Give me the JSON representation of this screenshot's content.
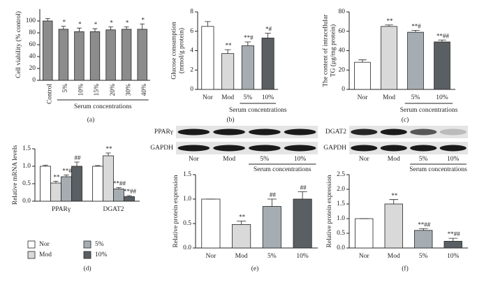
{
  "chart_data": [
    {
      "type": "bar",
      "panel_label": "(a)",
      "ylabel": "Cell viability (% control)",
      "categories": [
        "Control",
        "5%",
        "10%",
        "15%",
        "20%",
        "30%",
        "40%"
      ],
      "values": [
        100,
        86,
        82,
        82,
        85,
        86,
        86
      ],
      "errors": [
        4,
        5,
        6,
        5,
        5,
        4,
        9
      ],
      "annotations": [
        null,
        "*",
        "*",
        "*",
        "*",
        "*",
        "*"
      ],
      "colors": [
        "#8c8c8c",
        "#8c8c8c",
        "#8c8c8c",
        "#8c8c8c",
        "#8c8c8c",
        "#8c8c8c",
        "#8c8c8c"
      ],
      "ylim": [
        0,
        120
      ],
      "yticks": [
        0,
        20,
        40,
        60,
        80,
        100
      ],
      "group_label": "Serum concentrations"
    },
    {
      "type": "bar",
      "panel_label": "(b)",
      "ylabel": "Glucose consumption\n(mmol/g protein)",
      "categories": [
        "Nor",
        "Mod",
        "5%",
        "10%"
      ],
      "values": [
        6.5,
        3.7,
        4.5,
        5.3
      ],
      "errors": [
        0.5,
        0.4,
        0.4,
        0.5
      ],
      "annotations": [
        null,
        "**",
        "**#",
        "*#"
      ],
      "colors": [
        "#ffffff",
        "#d9d9d9",
        "#a6adb2",
        "#5a5f63"
      ],
      "ylim": [
        0,
        8
      ],
      "yticks": [
        0,
        2,
        4,
        6,
        8
      ],
      "group_label": "Serum concentrations"
    },
    {
      "type": "bar",
      "panel_label": "(c)",
      "ylabel": "The content of intracellular\nTG (μg/mg protein)",
      "categories": [
        "Nor",
        "Mod",
        "5%",
        "10%"
      ],
      "values": [
        28,
        65,
        59,
        49
      ],
      "errors": [
        2.5,
        1.5,
        2,
        2
      ],
      "annotations": [
        null,
        "**",
        "**#",
        "**##"
      ],
      "colors": [
        "#ffffff",
        "#d9d9d9",
        "#a6adb2",
        "#5a5f63"
      ],
      "ylim": [
        0,
        80
      ],
      "yticks": [
        0,
        20,
        40,
        60,
        80
      ],
      "group_label": "Serum concentrations"
    },
    {
      "type": "grouped_bar",
      "panel_label": "(d)",
      "ylabel": "Relative mRNA levels",
      "categories": [
        "PPARγ",
        "DGAT2"
      ],
      "series": [
        {
          "name": "Nor",
          "color": "#ffffff",
          "values": [
            1.0,
            1.0
          ],
          "errors": [
            0.03,
            0.02
          ],
          "annotations": [
            null,
            null
          ]
        },
        {
          "name": "Mod",
          "color": "#d9d9d9",
          "values": [
            0.52,
            1.3
          ],
          "errors": [
            0.05,
            0.08
          ],
          "annotations": [
            "**",
            "**"
          ]
        },
        {
          "name": "5%",
          "color": "#a6adb2",
          "values": [
            0.7,
            0.35
          ],
          "errors": [
            0.05,
            0.04
          ],
          "annotations": [
            "**#",
            "**##"
          ]
        },
        {
          "name": "10%",
          "color": "#5a5f63",
          "values": [
            1.0,
            0.13
          ],
          "errors": [
            0.12,
            0.03
          ],
          "annotations": [
            "##",
            "**##"
          ]
        }
      ],
      "ylim": [
        0,
        1.5
      ],
      "yticks": [
        {
          "value": 0,
          "label": "0.0"
        },
        0.5,
        {
          "value": 1,
          "label": "1.0"
        },
        1.5
      ],
      "legend": "bottom"
    },
    {
      "type": "bar",
      "panel_label": "(e)",
      "ylabel": "Relative protein expression",
      "categories": [
        "Nor",
        "Mod",
        "5%",
        "10%"
      ],
      "values": [
        1.0,
        0.48,
        0.85,
        1.0
      ],
      "errors": [
        0,
        0.07,
        0.15,
        0.15
      ],
      "annotations": [
        null,
        "**",
        "##",
        "##"
      ],
      "colors": [
        "#ffffff",
        "#d9d9d9",
        "#a6adb2",
        "#5a5f63"
      ],
      "ylim": [
        0,
        1.5
      ],
      "yticks": [
        {
          "value": 0,
          "label": "0.0"
        },
        0.5,
        {
          "value": 1,
          "label": "1.0"
        },
        1.5
      ],
      "blot_rows": [
        "PPARγ",
        "GAPDH"
      ],
      "group_label": "Serum concentrations"
    },
    {
      "type": "bar",
      "panel_label": "(f)",
      "ylabel": "Relative protein expression",
      "categories": [
        "Nor",
        "Mod",
        "5%",
        "10%"
      ],
      "values": [
        1.0,
        1.5,
        0.6,
        0.23
      ],
      "errors": [
        0,
        0.15,
        0.06,
        0.1
      ],
      "annotations": [
        null,
        "**",
        "**##",
        "**##"
      ],
      "colors": [
        "#ffffff",
        "#d9d9d9",
        "#a6adb2",
        "#5a5f63"
      ],
      "ylim": [
        0,
        2.5
      ],
      "yticks": [
        {
          "value": 0,
          "label": "0.0"
        },
        0.5,
        {
          "value": 1,
          "label": "1.0"
        },
        1.5,
        {
          "value": 2,
          "label": "2.0"
        },
        2.5
      ],
      "blot_rows": [
        "DGAT2",
        "GAPDH"
      ],
      "group_label": "Serum concentrations"
    }
  ]
}
